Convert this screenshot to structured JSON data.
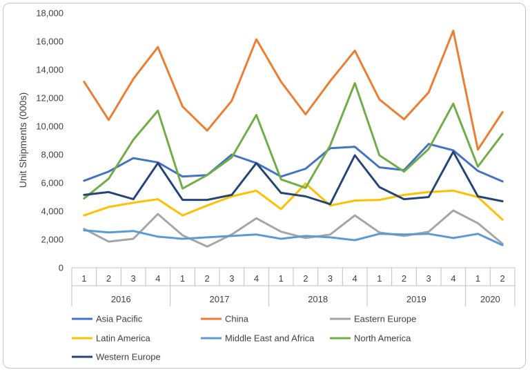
{
  "chart_data": {
    "type": "line",
    "title": "",
    "xlabel": "",
    "ylabel": "Unit Shipments (000s)",
    "ylim": [
      0,
      18000
    ],
    "y_ticks": [
      "0",
      "2,000",
      "4,000",
      "6,000",
      "8,000",
      "10,000",
      "12,000",
      "14,000",
      "16,000",
      "18,000"
    ],
    "grid": false,
    "legend_position": "bottom",
    "categories": [
      "1",
      "2",
      "3",
      "4",
      "1",
      "2",
      "3",
      "4",
      "1",
      "2",
      "3",
      "4",
      "1",
      "2",
      "3",
      "4",
      "1",
      "2"
    ],
    "years": [
      {
        "label": "2016",
        "count": 4
      },
      {
        "label": "2017",
        "count": 4
      },
      {
        "label": "2018",
        "count": 4
      },
      {
        "label": "2019",
        "count": 4
      },
      {
        "label": "2020",
        "count": 2
      }
    ],
    "series": [
      {
        "name": "Asia Pacific",
        "color": "#4472c4",
        "values": [
          6150,
          6800,
          7750,
          7450,
          6450,
          6550,
          8000,
          7400,
          6450,
          7000,
          8450,
          8550,
          7100,
          6900,
          8750,
          8300,
          6850,
          6100
        ]
      },
      {
        "name": "China",
        "color": "#ed7d31",
        "values": [
          13150,
          10450,
          13350,
          15600,
          11400,
          9700,
          11800,
          16150,
          13150,
          10850,
          13200,
          15350,
          11900,
          10500,
          12400,
          16750,
          8350,
          11000
        ]
      },
      {
        "name": "Eastern Europe",
        "color": "#a5a5a5",
        "values": [
          2750,
          1850,
          2050,
          3800,
          2300,
          1500,
          2350,
          3500,
          2550,
          2100,
          2350,
          3700,
          2500,
          2250,
          2550,
          4050,
          3150,
          1700
        ]
      },
      {
        "name": "Latin America",
        "color": "#ffc000",
        "values": [
          3700,
          4300,
          4600,
          4850,
          3700,
          4400,
          5050,
          5450,
          4150,
          5950,
          4400,
          4750,
          4800,
          5150,
          5350,
          5450,
          5000,
          3400
        ]
      },
      {
        "name": "Middle East and Africa",
        "color": "#5b9bd5",
        "values": [
          2650,
          2500,
          2600,
          2200,
          2050,
          2150,
          2250,
          2350,
          2050,
          2250,
          2150,
          1950,
          2400,
          2350,
          2400,
          2100,
          2400,
          1600
        ]
      },
      {
        "name": "North America",
        "color": "#70ad47",
        "values": [
          4900,
          6300,
          9050,
          11100,
          5600,
          6550,
          7800,
          10800,
          6250,
          5650,
          8650,
          13050,
          7950,
          6800,
          8400,
          11600,
          7150,
          9450
        ]
      },
      {
        "name": "Western Europe",
        "color": "#264478",
        "values": [
          5150,
          5350,
          4850,
          7400,
          4800,
          4800,
          5150,
          7400,
          5300,
          5050,
          4500,
          7950,
          5700,
          4850,
          5000,
          8200,
          5050,
          4700
        ]
      }
    ]
  }
}
